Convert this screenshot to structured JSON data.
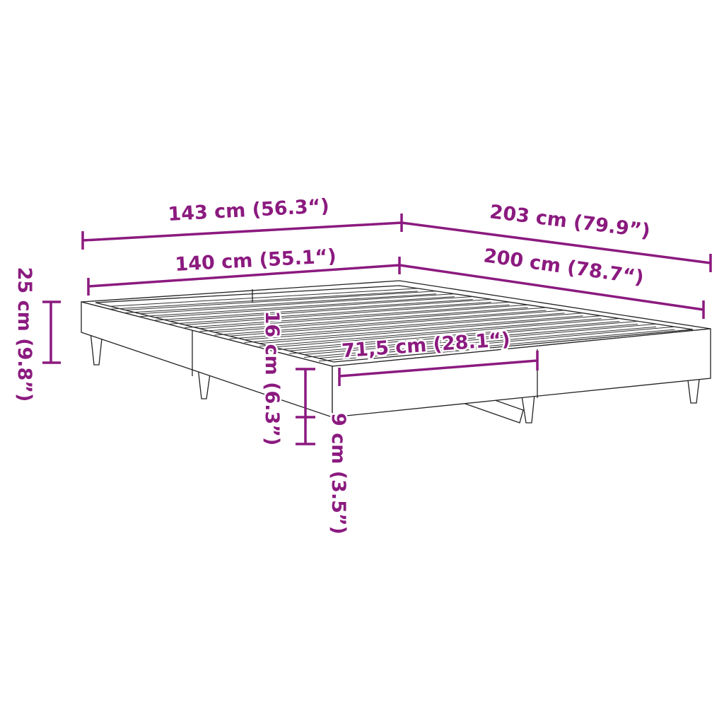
{
  "accent_color": "#8b1a7f",
  "dimensions": {
    "outer_width": "143 cm (56.3“)",
    "outer_length": "203 cm (79.9”)",
    "inner_width": "140 cm (55.1“)",
    "inner_length": "200 cm (78.7“)",
    "total_height": "25 cm (9.8”)",
    "frame_height": "16 cm (6.3”)",
    "clearance": "9 cm (3.5”)",
    "half_length": "71,5 cm (28.1“)"
  }
}
